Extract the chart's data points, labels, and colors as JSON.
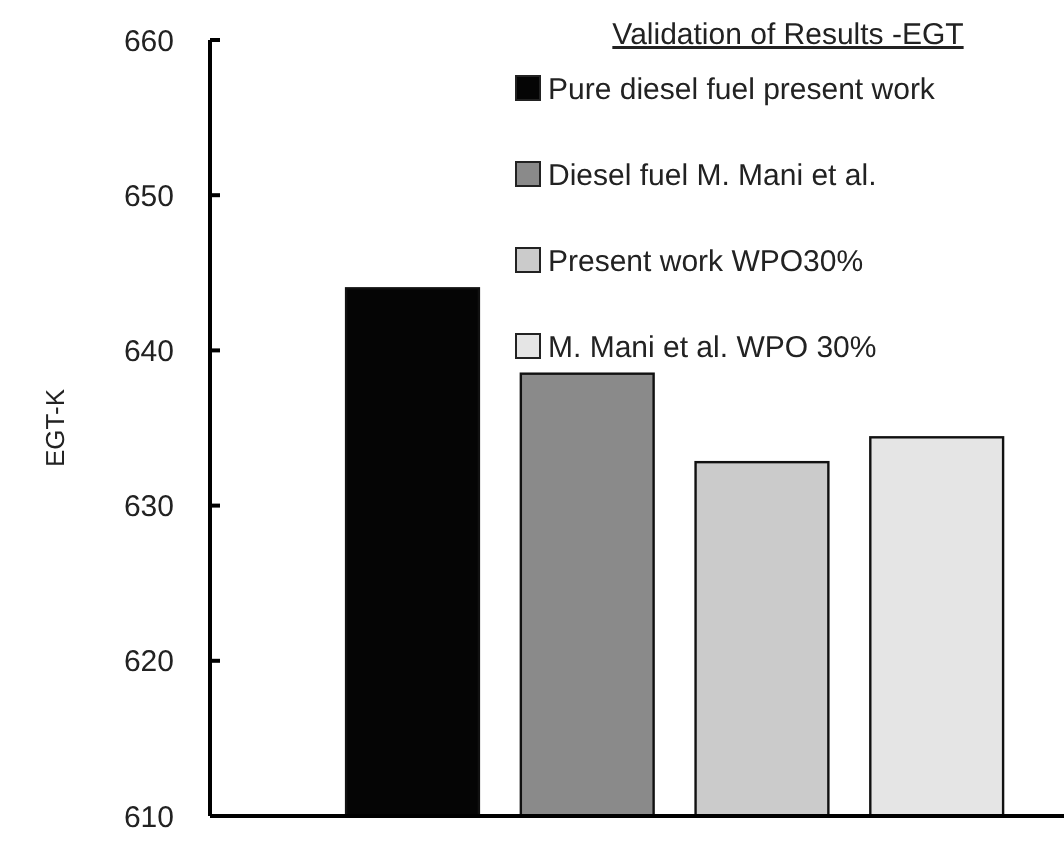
{
  "chart_data": {
    "type": "bar",
    "ylabel": "EGT-K",
    "legend_title": "Validation of Results -EGT",
    "categories": [
      null
    ],
    "series": [
      {
        "name": "Pure diesel fuel present work",
        "color": "#050505",
        "values": [
          644.0
        ]
      },
      {
        "name": "Diesel fuel M. Mani et al.",
        "color": "#8a8a8a",
        "values": [
          638.5
        ]
      },
      {
        "name": "Present work WPO30%",
        "color": "#cbcbcb",
        "values": [
          632.8
        ]
      },
      {
        "name": "M. Mani et al. WPO 30%",
        "color": "#e5e5e5",
        "values": [
          634.4
        ]
      }
    ],
    "ylim": [
      610,
      660
    ],
    "yticks": [
      610,
      620,
      630,
      640,
      650,
      660
    ],
    "grid": false,
    "legend": "top right"
  }
}
